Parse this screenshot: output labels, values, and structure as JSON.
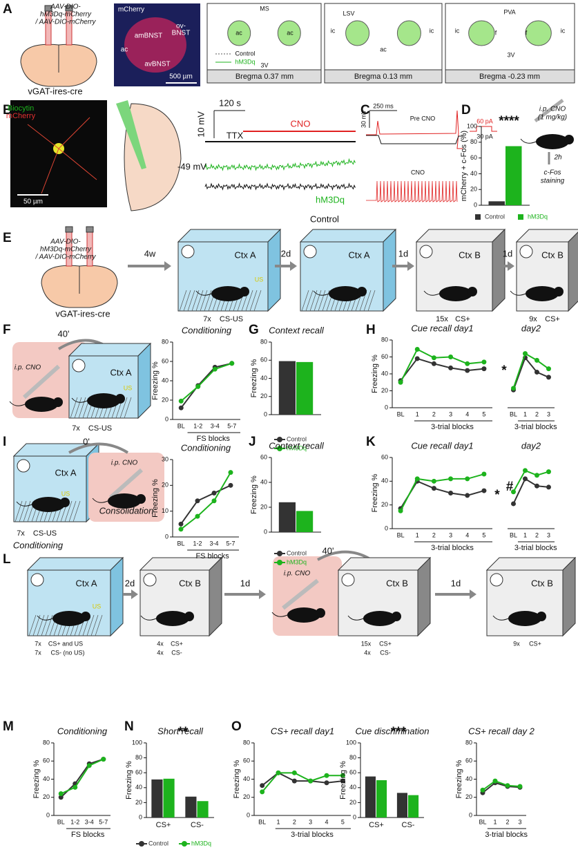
{
  "panels": {
    "letters": [
      "A",
      "B",
      "C",
      "D",
      "E",
      "F",
      "G",
      "H",
      "I",
      "J",
      "K",
      "L",
      "M",
      "N",
      "O"
    ],
    "A": {
      "virus": [
        "AAV-DIO-",
        "hM3Dq-mCherry",
        "/ AAV-DIO-mCherry"
      ],
      "mouse": "vGAT-ires-cre",
      "stain": "mCherry",
      "regions": [
        "ov-",
        "BNST",
        "amBNST",
        "ac",
        "avBNST"
      ],
      "scale": "500 µm",
      "legend": [
        "Control",
        "hM3Dq"
      ],
      "atlas": [
        "MS",
        "ac",
        "ac",
        "3V",
        "LSV",
        "ic",
        "ac",
        "ic",
        "PVA",
        "ic",
        "f",
        "f",
        "ic",
        "3V"
      ],
      "bregma": [
        "Bregma 0.37 mm",
        "Bregma 0.13 mm",
        "Bregma -0.23 mm"
      ]
    },
    "B": {
      "stains": [
        "Biocytin",
        "mCherry"
      ],
      "scale": "50 µm",
      "time": "120 s",
      "volt": "10 mV",
      "ttx": "TTX",
      "cno": "CNO",
      "rest": "-49 mV",
      "traces": [
        "hM3Dq",
        "Control"
      ]
    },
    "C": {
      "time": "250 ms",
      "volt": "30 mV",
      "pre": "Pre CNO",
      "steps": [
        "60 pA",
        "30 pA"
      ],
      "post": "CNO"
    },
    "D": {
      "injection": [
        "i.p. CNO",
        "(1 mg/kg)"
      ],
      "delay": "2h",
      "staining": [
        "c-Fos",
        "staining"
      ]
    },
    "E": {
      "virus": [
        "AAV-DIO-",
        "hM3Dq-mCherry",
        "/ AAV-DIO-mCherry"
      ],
      "mouse": "vGAT-ires-cre",
      "steps": [
        "4w",
        "2d",
        "1d",
        "1d"
      ],
      "contexts": [
        "Ctx A",
        "Ctx A",
        "Ctx B",
        "Ctx B"
      ],
      "us": "US",
      "protocols": [
        "7x",
        "CS-US",
        "15x",
        "CS+",
        "9x",
        "CS+"
      ]
    },
    "F": {
      "delay": "40'",
      "injection": "i.p. CNO",
      "context": "Ctx A",
      "us": "US",
      "protocol": [
        "7x",
        "CS-US"
      ]
    },
    "I": {
      "delay": "0'",
      "context": "Ctx A",
      "us": "US",
      "injection": "i.p. CNO",
      "phases": [
        "Consolidation",
        "Conditioning"
      ],
      "protocol": [
        "7x",
        "CS-US"
      ]
    },
    "L": {
      "contexts": [
        "Ctx A",
        "Ctx B",
        "Ctx B",
        "Ctx B"
      ],
      "us": "US",
      "protocols": [
        "7x",
        "CS+ and US",
        "7x",
        "CS- (no US)",
        "4x",
        "CS+",
        "4x",
        "CS-",
        "15x",
        "CS+",
        "4x",
        "CS-",
        "9x",
        "CS+"
      ],
      "steps": [
        "2d",
        "1d",
        "1d"
      ],
      "delay": "40'",
      "injection": "i.p. CNO"
    }
  },
  "chart_data": [
    {
      "type": "bar",
      "ylabel": "mCherry + c-Fos (%)",
      "series": [
        {
          "name": "Control",
          "color": "#333333",
          "values": [
            5
          ]
        },
        {
          "name": "hM3Dq",
          "color": "#1db31d",
          "values": [
            75
          ]
        }
      ],
      "ylim": [
        0,
        100
      ],
      "yticks": [
        0,
        20,
        40,
        60,
        80,
        100
      ],
      "annotations": [
        "****"
      ],
      "legend": "bottom"
    },
    {
      "type": "line",
      "title": "Conditioning",
      "ylabel": "Freezing %",
      "xlabel": "FS blocks",
      "categories": [
        "BL",
        "1-2",
        "3-4",
        "5-7"
      ],
      "series": [
        {
          "color": "#333333",
          "values": [
            12,
            35,
            54,
            58
          ]
        },
        {
          "color": "#1db31d",
          "values": [
            19,
            34,
            52,
            58
          ]
        }
      ],
      "ylim": [
        0,
        80
      ],
      "yticks": [
        0,
        20,
        40,
        60,
        80
      ]
    },
    {
      "type": "bar",
      "title": "Context recall",
      "ylabel": "Freezing %",
      "series": [
        {
          "name": "Control",
          "color": "#333333",
          "values": [
            59
          ]
        },
        {
          "name": "hM3Dq",
          "color": "#1db31d",
          "values": [
            58
          ]
        }
      ],
      "ylim": [
        0,
        80
      ],
      "yticks": [
        0,
        20,
        40,
        60,
        80
      ],
      "legend": "bottom"
    },
    {
      "type": "line",
      "title": "Cue recall day1",
      "ylabel": "Freezing %",
      "xlabel": "3-trial blocks",
      "categories": [
        "BL",
        "1",
        "2",
        "3",
        "4",
        "5"
      ],
      "series": [
        {
          "color": "#333333",
          "values": [
            32,
            58,
            52,
            47,
            44,
            46
          ]
        },
        {
          "color": "#1db31d",
          "values": [
            30,
            69,
            59,
            60,
            52,
            54
          ]
        }
      ],
      "ylim": [
        0,
        80
      ],
      "yticks": [
        0,
        20,
        40,
        60,
        80
      ],
      "annotations": [
        "*"
      ]
    },
    {
      "type": "line",
      "title": "day2",
      "xlabel": "3-trial blocks",
      "categories": [
        "BL",
        "1",
        "2",
        "3"
      ],
      "series": [
        {
          "color": "#333333",
          "values": [
            21,
            59,
            42,
            36
          ]
        },
        {
          "color": "#1db31d",
          "values": [
            23,
            64,
            56,
            46
          ]
        }
      ],
      "ylim": [
        0,
        80
      ]
    },
    {
      "type": "line",
      "title": "Conditioning",
      "ylabel": "Freezing %",
      "xlabel": "FS blocks",
      "categories": [
        "BL",
        "1-2",
        "3-4",
        "5-7"
      ],
      "series": [
        {
          "color": "#333333",
          "values": [
            5,
            14,
            17,
            20
          ]
        },
        {
          "color": "#1db31d",
          "values": [
            3,
            8,
            14,
            25
          ]
        }
      ],
      "ylim": [
        0,
        30
      ],
      "yticks": [
        0,
        10,
        20,
        30
      ]
    },
    {
      "type": "bar",
      "title": "Context recall",
      "ylabel": "Freezing %",
      "series": [
        {
          "name": "Control",
          "color": "#333333",
          "values": [
            24
          ]
        },
        {
          "name": "hM3Dq",
          "color": "#1db31d",
          "values": [
            17
          ]
        }
      ],
      "ylim": [
        0,
        60
      ],
      "yticks": [
        0,
        20,
        40,
        60
      ],
      "legend": "bottom"
    },
    {
      "type": "line",
      "title": "Cue recall day1",
      "ylabel": "Freezing %",
      "xlabel": "3-trial blocks",
      "categories": [
        "BL",
        "1",
        "2",
        "3",
        "4",
        "5"
      ],
      "series": [
        {
          "color": "#333333",
          "values": [
            17,
            40,
            34,
            30,
            28,
            32
          ]
        },
        {
          "color": "#1db31d",
          "values": [
            15,
            42,
            40,
            42,
            42,
            46
          ]
        }
      ],
      "ylim": [
        0,
        60
      ],
      "yticks": [
        0,
        20,
        40,
        60
      ],
      "annotations": [
        "*"
      ]
    },
    {
      "type": "line",
      "title": "day2",
      "xlabel": "3-trial blocks",
      "categories": [
        "BL",
        "1",
        "2",
        "3"
      ],
      "series": [
        {
          "color": "#333333",
          "values": [
            21,
            42,
            36,
            35
          ]
        },
        {
          "color": "#1db31d",
          "values": [
            31,
            49,
            45,
            48
          ]
        }
      ],
      "ylim": [
        0,
        60
      ],
      "annotations": [
        "#"
      ]
    },
    {
      "type": "line",
      "title": "Conditioning",
      "ylabel": "Freezing %",
      "xlabel": "FS blocks",
      "categories": [
        "BL",
        "1-2",
        "3-4",
        "5-7"
      ],
      "series": [
        {
          "color": "#333333",
          "values": [
            20,
            35,
            57,
            62
          ]
        },
        {
          "color": "#1db31d",
          "values": [
            24,
            31,
            55,
            62
          ]
        }
      ],
      "ylim": [
        0,
        80
      ],
      "yticks": [
        0,
        20,
        40,
        60,
        80
      ]
    },
    {
      "type": "bar",
      "title": "Short recall",
      "ylabel": "Freezing %",
      "categories": [
        "CS+",
        "CS-"
      ],
      "series": [
        {
          "name": "Control",
          "color": "#333333",
          "values": [
            51,
            28
          ]
        },
        {
          "name": "hM3Dq",
          "color": "#1db31d",
          "values": [
            52,
            22
          ]
        }
      ],
      "ylim": [
        0,
        100
      ],
      "yticks": [
        0,
        20,
        40,
        60,
        80,
        100
      ],
      "annotations": [
        "**"
      ],
      "legend": "bottom"
    },
    {
      "type": "line",
      "title": "CS+ recall day1",
      "ylabel": "Freezing %",
      "xlabel": "3-trial blocks",
      "categories": [
        "BL",
        "1",
        "2",
        "3",
        "4",
        "5"
      ],
      "series": [
        {
          "color": "#333333",
          "values": [
            33,
            47,
            38,
            38,
            36,
            38
          ]
        },
        {
          "color": "#1db31d",
          "values": [
            26,
            47,
            47,
            38,
            44,
            44
          ]
        }
      ],
      "ylim": [
        0,
        80
      ],
      "yticks": [
        0,
        20,
        40,
        60,
        80
      ]
    },
    {
      "type": "bar",
      "title": "Cue discrimination",
      "ylabel": "Freezing %",
      "categories": [
        "CS+",
        "CS-"
      ],
      "series": [
        {
          "color": "#333333",
          "values": [
            55,
            33
          ]
        },
        {
          "color": "#1db31d",
          "values": [
            50,
            30
          ]
        }
      ],
      "ylim": [
        0,
        100
      ],
      "yticks": [
        0,
        20,
        40,
        60,
        80,
        100
      ],
      "annotations": [
        "***"
      ]
    },
    {
      "type": "line",
      "title": "CS+ recall day 2",
      "ylabel": "Freezing %",
      "xlabel": "3-trial blocks",
      "categories": [
        "BL",
        "1",
        "2",
        "3"
      ],
      "series": [
        {
          "color": "#333333",
          "values": [
            25,
            36,
            32,
            31
          ]
        },
        {
          "color": "#1db31d",
          "values": [
            28,
            38,
            33,
            32
          ]
        }
      ],
      "ylim": [
        0,
        80
      ],
      "yticks": [
        0,
        20,
        40,
        60,
        80
      ]
    }
  ]
}
